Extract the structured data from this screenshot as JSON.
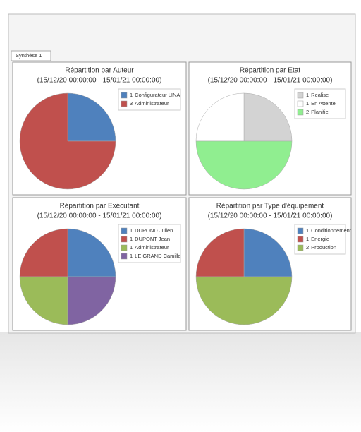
{
  "tab": "Synthèse 1",
  "chart_data": [
    {
      "type": "pie",
      "title": "Répartition par Auteur",
      "subtitle": "(15/12/20 00:00:00 - 15/01/21 00:00:00)",
      "categories": [
        "Configurateur LINA",
        "Administrateur"
      ],
      "values": [
        1,
        3
      ],
      "colors": [
        "#4f81bd",
        "#c0504d"
      ]
    },
    {
      "type": "pie",
      "title": "Répartition par Etat",
      "subtitle": "(15/12/20 00:00:00 - 15/01/21 00:00:00)",
      "categories": [
        "Realise",
        "En Attente",
        "Planifie"
      ],
      "values": [
        1,
        1,
        2
      ],
      "colors": [
        "#d3d3d3",
        "#ffffff",
        "#90ee90"
      ]
    },
    {
      "type": "pie",
      "title": "Répartition par Exécutant",
      "subtitle": "(15/12/20 00:00:00 - 15/01/21 00:00:00)",
      "categories": [
        "DUPOND Julien",
        "DUPONT Jean",
        "Administrateur",
        "LE GRAND Camille"
      ],
      "values": [
        1,
        1,
        1,
        1
      ],
      "colors": [
        "#4f81bd",
        "#c0504d",
        "#9bbb59",
        "#8064a2"
      ]
    },
    {
      "type": "pie",
      "title": "Répartition par Type d'équipement",
      "subtitle": "(15/12/20 00:00:00 - 15/01/21 00:00:00)",
      "categories": [
        "Conditionnement",
        "Energie",
        "Production"
      ],
      "values": [
        1,
        1,
        2
      ],
      "colors": [
        "#4f81bd",
        "#c0504d",
        "#9bbb59"
      ]
    }
  ]
}
